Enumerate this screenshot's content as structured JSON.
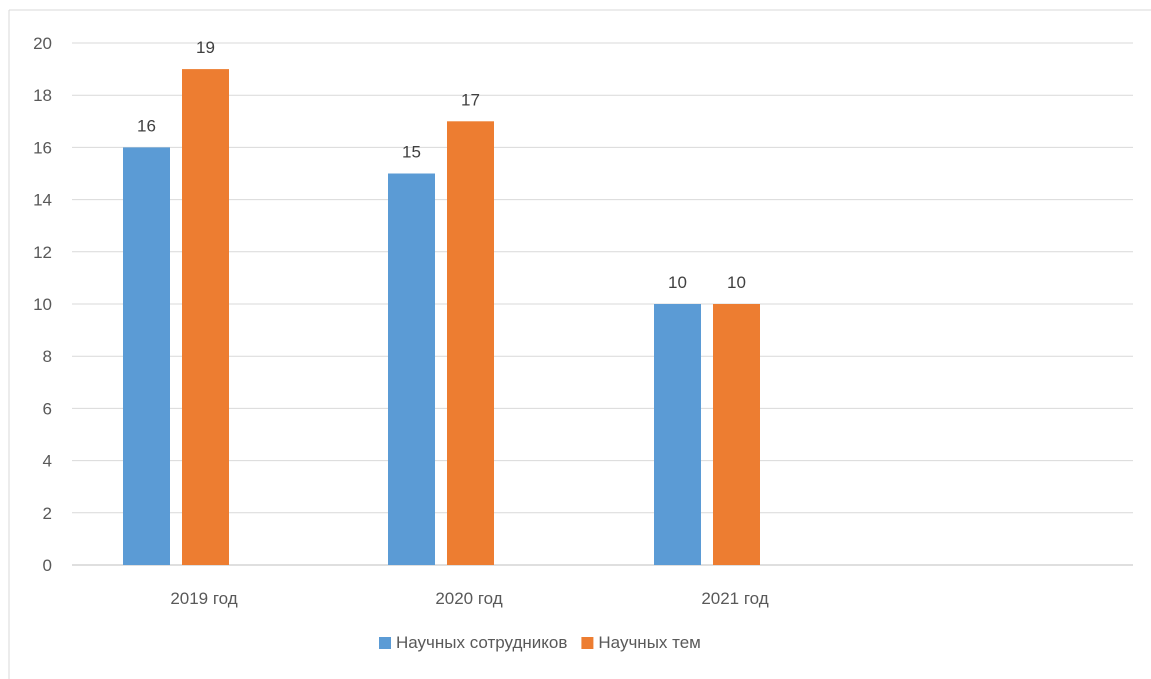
{
  "chart_data": {
    "type": "bar",
    "categories": [
      "2019 год",
      "2020 год",
      "2021 год"
    ],
    "series": [
      {
        "name": "Научных сотрудников",
        "values": [
          16,
          15,
          10
        ],
        "color": "#5B9BD5"
      },
      {
        "name": "Научных тем",
        "values": [
          19,
          17,
          10
        ],
        "color": "#ED7D31"
      }
    ],
    "yticks": [
      "0",
      "2",
      "4",
      "6",
      "8",
      "10",
      "12",
      "14",
      "16",
      "18",
      "20"
    ],
    "ylim": [
      0,
      20
    ],
    "grid": true,
    "legend_position": "bottom",
    "gridline_color": "#D9D9D9",
    "title": "",
    "xlabel": "",
    "ylabel": ""
  }
}
